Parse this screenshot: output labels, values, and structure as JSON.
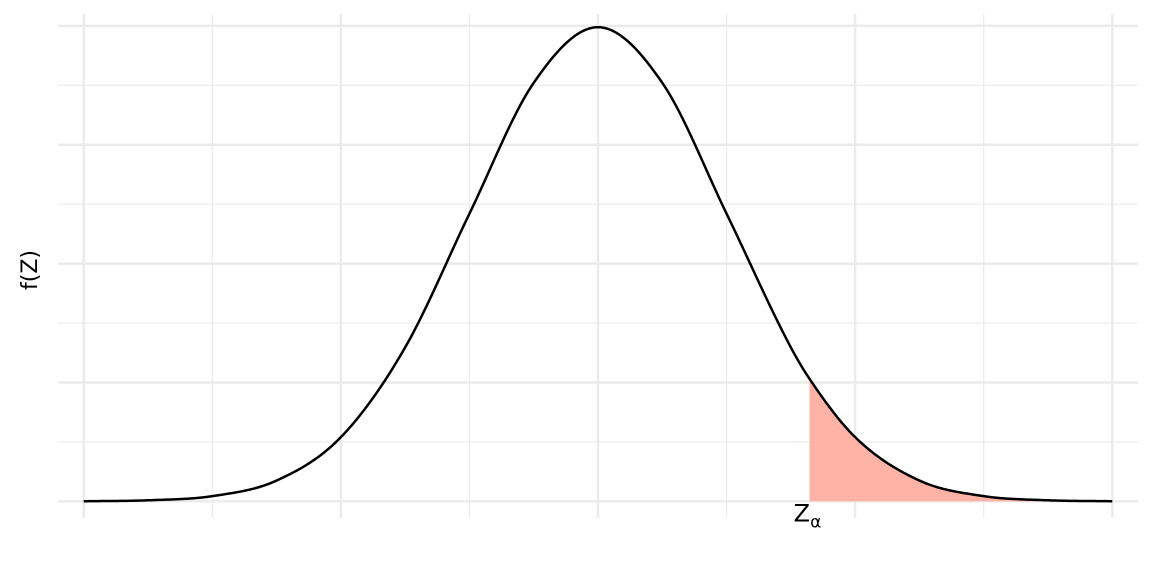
{
  "chart_data": {
    "type": "line",
    "title": "",
    "xlabel": "",
    "ylabel": "f(Z)",
    "xlim": [
      -4.2,
      4.2
    ],
    "ylim": [
      -0.014,
      0.41
    ],
    "grid": true,
    "x_breaks_major": [
      -4,
      -2,
      0,
      2,
      4
    ],
    "x_breaks_minor": [
      -3,
      -1,
      1,
      3
    ],
    "y_breaks_major": [
      0,
      0.1,
      0.2,
      0.3,
      0.4
    ],
    "y_breaks_minor": [
      0.05,
      0.15,
      0.25,
      0.35
    ],
    "series": [
      {
        "x": [
          -4,
          -3.5,
          -3,
          -2.5,
          -2,
          -1.5,
          -1,
          -0.5,
          0,
          0.5,
          1,
          1.5,
          1.645,
          2,
          2.5,
          3,
          3.5,
          4
        ],
        "y": [
          0.0001,
          0.0009,
          0.0044,
          0.0175,
          0.054,
          0.1295,
          0.242,
          0.3521,
          0.3989,
          0.3521,
          0.242,
          0.1295,
          0.1031,
          0.054,
          0.0175,
          0.0044,
          0.0009,
          0.0001
        ]
      }
    ],
    "shaded_region": {
      "from": 1.645,
      "to": 4,
      "color": "#FFB2A6"
    },
    "critical_value": {
      "x": 1.645,
      "label": "Z",
      "subscript": "α"
    },
    "curve_color": "#000000",
    "grid_color": "#EBEBEB"
  }
}
